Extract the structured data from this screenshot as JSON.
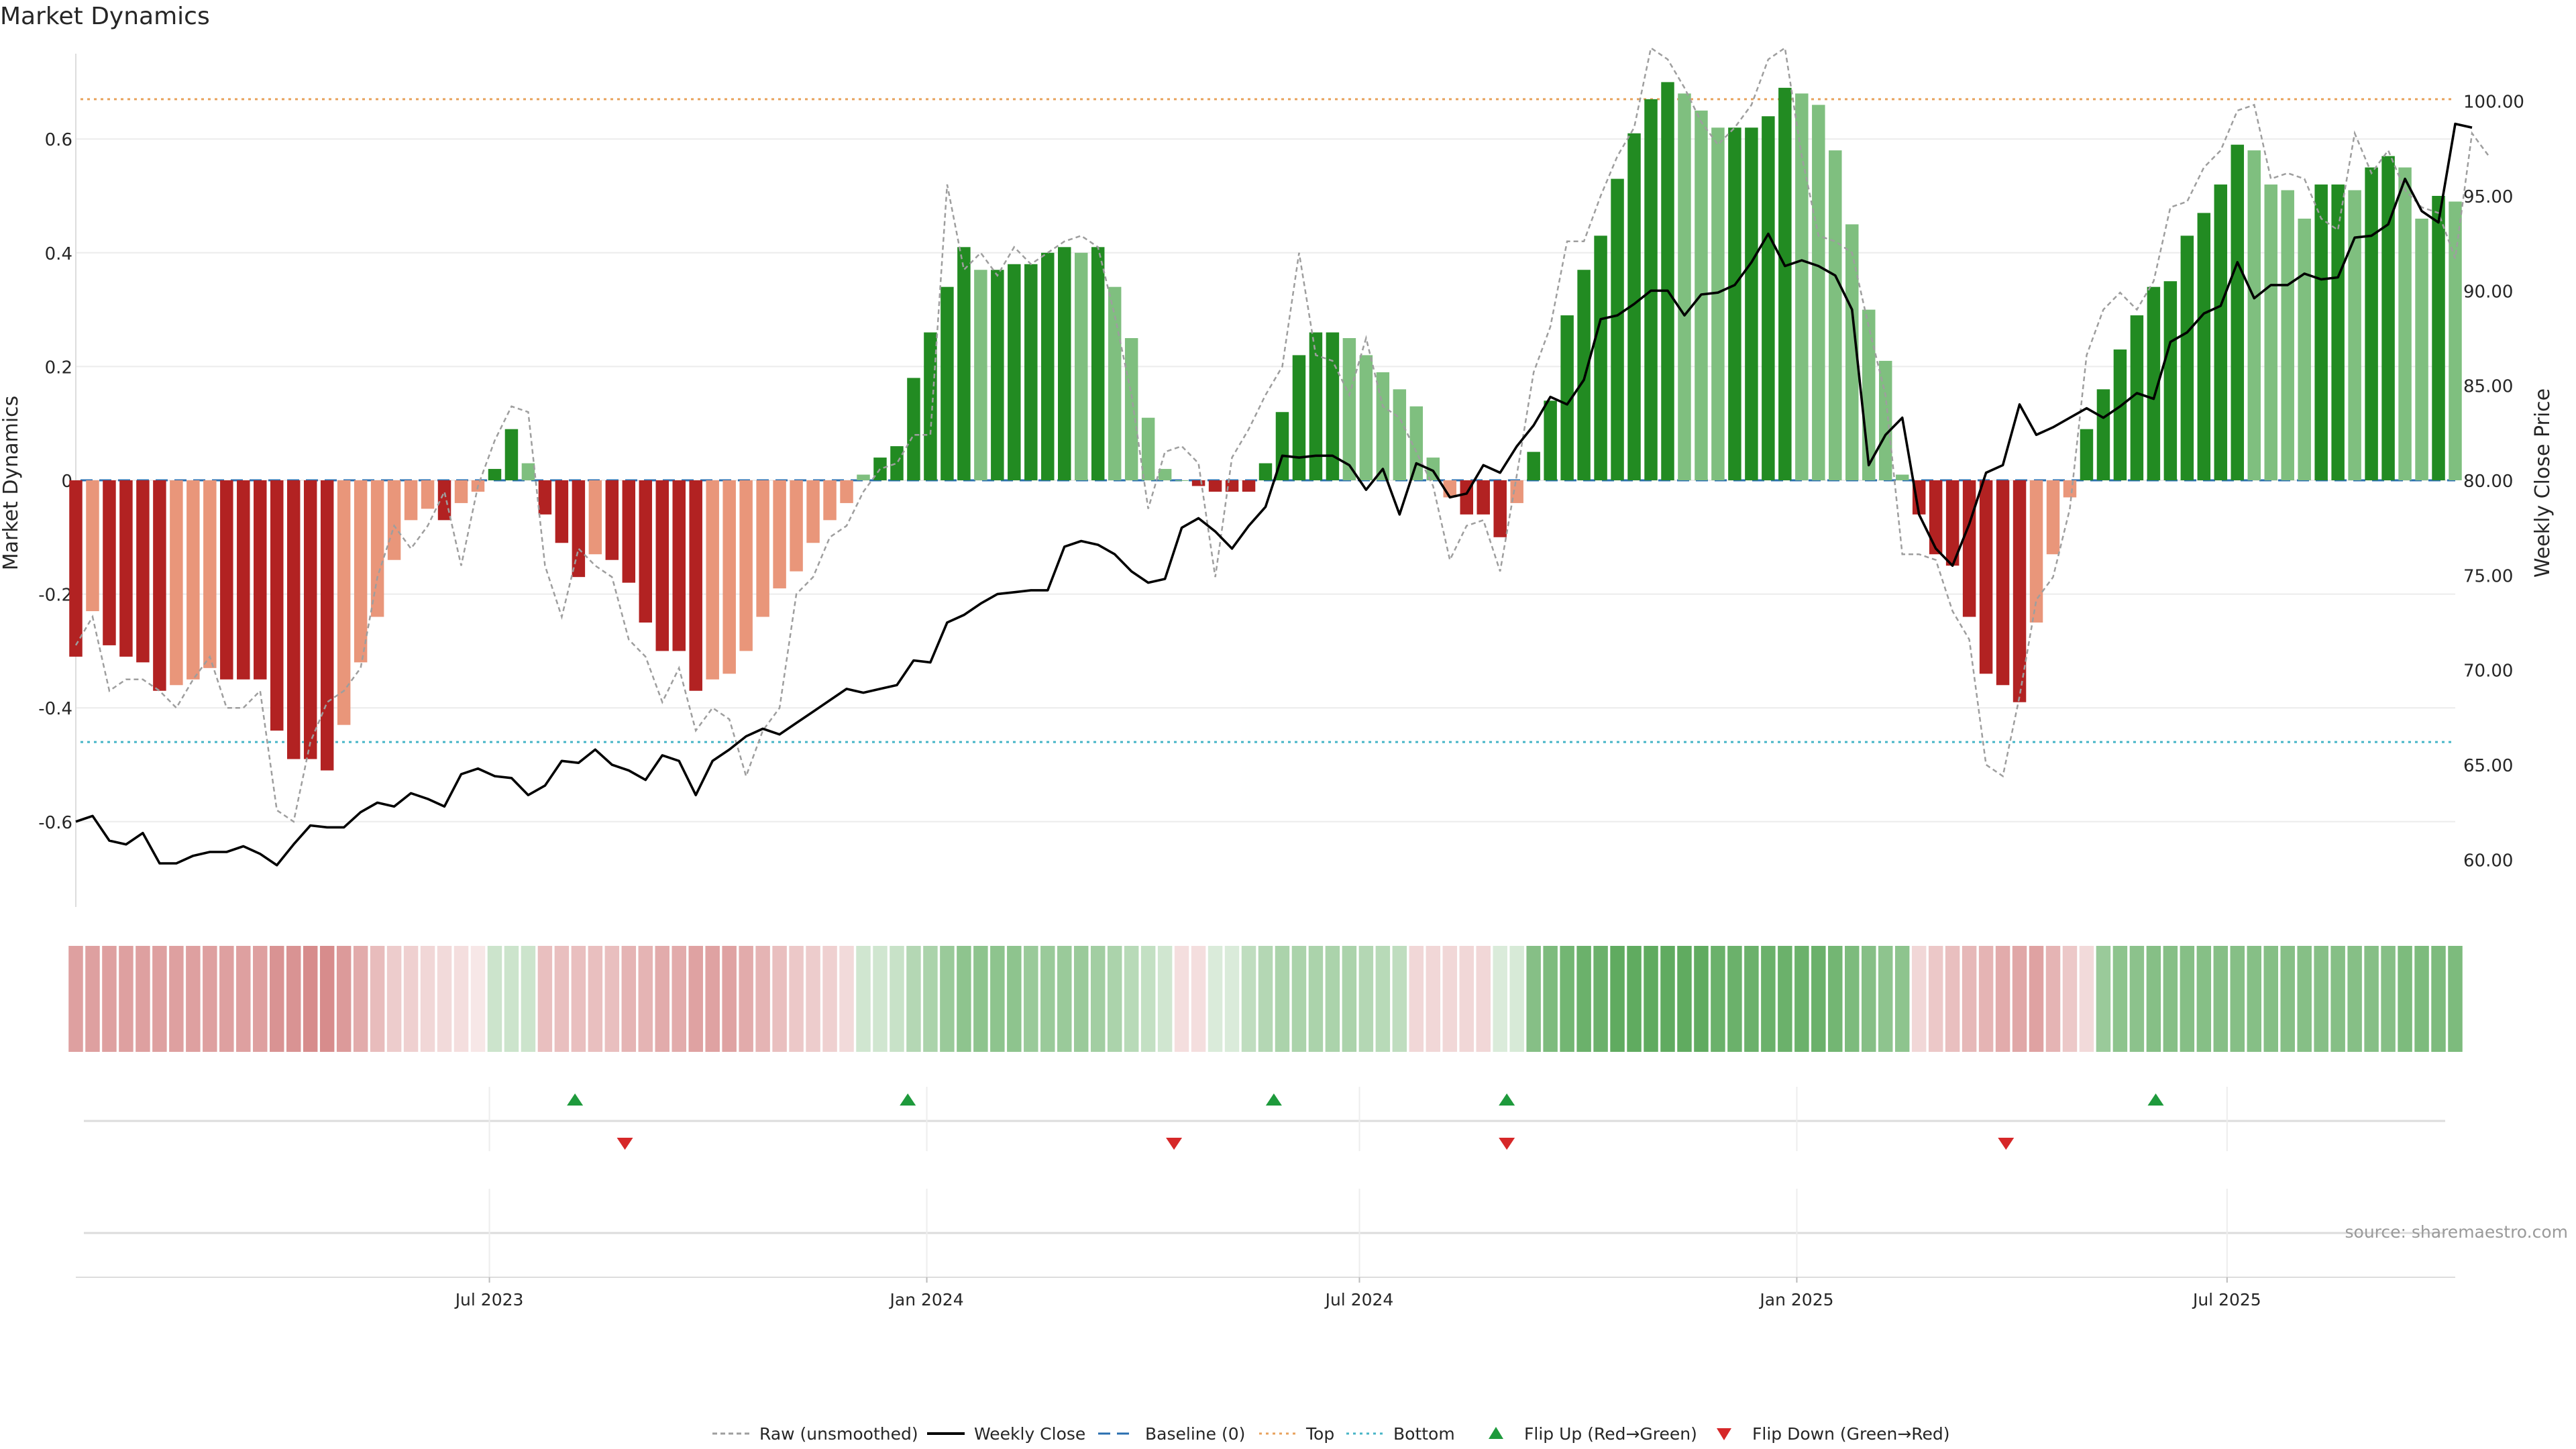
{
  "title": "Market Dynamics",
  "source": "source: sharemaestro.com",
  "chart_data": {
    "type": "bar",
    "left_axis": {
      "label": "Market Dynamics",
      "ylim": [
        -0.75,
        0.75
      ],
      "ticks": [
        -0.6,
        -0.4,
        -0.2,
        0,
        0.2,
        0.4,
        0.6
      ],
      "tick_labels": [
        "-0.6",
        "-0.4",
        "-0.2",
        "0",
        "0.2",
        "0.4",
        "0.6"
      ]
    },
    "right_axis": {
      "label": "Weekly Close Price",
      "ylim": [
        57.5,
        102.5
      ],
      "ticks": [
        60,
        65,
        70,
        75,
        80,
        85,
        90,
        95,
        100
      ],
      "tick_labels": [
        "60.00",
        "65.00",
        "70.00",
        "75.00",
        "80.00",
        "85.00",
        "90.00",
        "95.00",
        "100.00"
      ]
    },
    "x_axis": {
      "start": "2023-01-08",
      "end": "2025-10-05",
      "ticks": [
        "2023-07-01",
        "2024-01-01",
        "2024-07-01",
        "2025-01-01",
        "2025-07-01"
      ],
      "tick_labels": [
        "Jul 2023",
        "Jan 2024",
        "Jul 2024",
        "Jan 2025",
        "Jul 2025"
      ]
    },
    "top": 0.67,
    "bottom": -0.46,
    "bars": [
      -0.31,
      -0.23,
      -0.29,
      -0.31,
      -0.32,
      -0.37,
      -0.36,
      -0.35,
      -0.33,
      -0.35,
      -0.35,
      -0.35,
      -0.44,
      -0.49,
      -0.49,
      -0.51,
      -0.43,
      -0.32,
      -0.24,
      -0.14,
      -0.07,
      -0.05,
      -0.07,
      -0.04,
      -0.02,
      0.02,
      0.09,
      0.03,
      -0.06,
      -0.11,
      -0.17,
      -0.13,
      -0.14,
      -0.18,
      -0.25,
      -0.3,
      -0.3,
      -0.37,
      -0.35,
      -0.34,
      -0.3,
      -0.24,
      -0.19,
      -0.16,
      -0.11,
      -0.07,
      -0.04,
      0.01,
      0.04,
      0.06,
      0.18,
      0.26,
      0.34,
      0.41,
      0.37,
      0.37,
      0.38,
      0.38,
      0.4,
      0.41,
      0.4,
      0.41,
      0.34,
      0.25,
      0.11,
      0.02,
      0.0,
      -0.01,
      -0.02,
      -0.02,
      -0.02,
      0.03,
      0.12,
      0.22,
      0.26,
      0.26,
      0.25,
      0.22,
      0.19,
      0.16,
      0.13,
      0.04,
      -0.03,
      -0.06,
      -0.06,
      -0.1,
      -0.04,
      0.05,
      0.14,
      0.29,
      0.37,
      0.43,
      0.53,
      0.61,
      0.67,
      0.7,
      0.68,
      0.65,
      0.62,
      0.62,
      0.62,
      0.64,
      0.69,
      0.68,
      0.66,
      0.58,
      0.45,
      0.3,
      0.21,
      0.01,
      -0.06,
      -0.13,
      -0.15,
      -0.24,
      -0.34,
      -0.36,
      -0.39,
      -0.25,
      -0.13,
      -0.03,
      0.09,
      0.16,
      0.23,
      0.29,
      0.34,
      0.35,
      0.43,
      0.47,
      0.52,
      0.59,
      0.58,
      0.52,
      0.51,
      0.46,
      0.52,
      0.52,
      0.51,
      0.55,
      0.57,
      0.55,
      0.46,
      0.5,
      0.49
    ],
    "raw": [
      -0.29,
      -0.24,
      -0.37,
      -0.35,
      -0.35,
      -0.37,
      -0.4,
      -0.35,
      -0.31,
      -0.4,
      -0.4,
      -0.37,
      -0.58,
      -0.6,
      -0.46,
      -0.39,
      -0.37,
      -0.33,
      -0.17,
      -0.08,
      -0.12,
      -0.08,
      -0.02,
      -0.15,
      -0.01,
      0.07,
      0.13,
      0.12,
      -0.15,
      -0.24,
      -0.12,
      -0.15,
      -0.17,
      -0.28,
      -0.31,
      -0.39,
      -0.33,
      -0.44,
      -0.4,
      -0.42,
      -0.52,
      -0.44,
      -0.4,
      -0.2,
      -0.17,
      -0.1,
      -0.08,
      -0.02,
      0.02,
      0.03,
      0.08,
      0.08,
      0.52,
      0.37,
      0.4,
      0.36,
      0.41,
      0.38,
      0.4,
      0.42,
      0.43,
      0.41,
      0.29,
      0.15,
      -0.05,
      0.05,
      0.06,
      0.03,
      -0.17,
      0.04,
      0.09,
      0.15,
      0.2,
      0.4,
      0.22,
      0.21,
      0.15,
      0.25,
      0.13,
      0.11,
      0.05,
      -0.01,
      -0.14,
      -0.08,
      -0.07,
      -0.16,
      0.01,
      0.19,
      0.27,
      0.42,
      0.42,
      0.5,
      0.57,
      0.62,
      0.76,
      0.74,
      0.69,
      0.63,
      0.59,
      0.62,
      0.66,
      0.74,
      0.76,
      0.57,
      0.43,
      0.42,
      0.4,
      0.27,
      0.15,
      -0.13,
      -0.13,
      -0.14,
      -0.23,
      -0.28,
      -0.5,
      -0.52,
      -0.38,
      -0.21,
      -0.17,
      -0.05,
      0.22,
      0.3,
      0.33,
      0.3,
      0.35,
      0.48,
      0.49,
      0.55,
      0.58,
      0.65,
      0.66,
      0.53,
      0.54,
      0.53,
      0.46,
      0.44,
      0.61,
      0.54,
      0.58,
      0.51,
      0.48,
      0.47,
      0.39,
      0.61,
      0.57
    ],
    "close": [
      62.0,
      62.3,
      61.0,
      60.8,
      61.4,
      59.8,
      59.8,
      60.2,
      60.4,
      60.4,
      60.7,
      60.3,
      59.7,
      60.8,
      61.8,
      61.7,
      61.7,
      62.5,
      63.0,
      62.8,
      63.5,
      63.2,
      62.8,
      64.5,
      64.8,
      64.4,
      64.3,
      63.4,
      63.9,
      65.2,
      65.1,
      65.8,
      65.0,
      64.7,
      64.2,
      65.5,
      65.2,
      63.4,
      65.2,
      65.8,
      66.5,
      66.9,
      66.6,
      67.2,
      67.8,
      68.4,
      69.0,
      68.8,
      69.0,
      69.2,
      70.5,
      70.4,
      72.5,
      72.9,
      73.5,
      74.0,
      74.1,
      74.2,
      74.2,
      76.5,
      76.8,
      76.6,
      76.1,
      75.2,
      74.6,
      74.8,
      77.5,
      78.0,
      77.3,
      76.4,
      77.6,
      78.6,
      81.3,
      81.2,
      81.3,
      81.3,
      80.8,
      79.5,
      80.6,
      78.2,
      80.9,
      80.5,
      79.1,
      79.3,
      80.8,
      80.4,
      81.8,
      82.9,
      84.4,
      84.0,
      85.3,
      88.5,
      88.7,
      89.3,
      90.0,
      90.0,
      88.7,
      89.8,
      89.9,
      90.3,
      91.5,
      93.0,
      91.3,
      91.6,
      91.3,
      90.8,
      89.0,
      80.8,
      82.4,
      83.3,
      78.2,
      76.4,
      75.5,
      77.7,
      80.4,
      80.8,
      84.0,
      82.4,
      82.8,
      83.3,
      83.8,
      83.3,
      83.9,
      84.6,
      84.3,
      87.3,
      87.8,
      88.8,
      89.2,
      91.5,
      89.6,
      90.3,
      90.3,
      90.9,
      90.6,
      90.7,
      92.8,
      92.9,
      93.5,
      95.9,
      94.2,
      93.6,
      98.8,
      98.6
    ],
    "heat": [
      -0.41,
      -0.41,
      -0.41,
      -0.41,
      -0.41,
      -0.41,
      -0.41,
      -0.41,
      -0.41,
      -0.41,
      -0.41,
      -0.41,
      -0.48,
      -0.48,
      -0.52,
      -0.52,
      -0.45,
      -0.35,
      -0.26,
      -0.18,
      -0.15,
      -0.12,
      -0.1,
      -0.08,
      -0.04,
      0.18,
      0.18,
      0.18,
      -0.25,
      -0.25,
      -0.25,
      -0.25,
      -0.25,
      -0.3,
      -0.3,
      -0.35,
      -0.35,
      -0.4,
      -0.4,
      -0.4,
      -0.35,
      -0.3,
      -0.25,
      -0.2,
      -0.18,
      -0.15,
      -0.1,
      0.15,
      0.15,
      0.2,
      0.3,
      0.35,
      0.45,
      0.5,
      0.5,
      0.5,
      0.5,
      0.45,
      0.45,
      0.45,
      0.45,
      0.4,
      0.35,
      0.28,
      0.22,
      0.15,
      -0.08,
      -0.08,
      0.1,
      0.1,
      0.25,
      0.3,
      0.35,
      0.35,
      0.35,
      0.35,
      0.35,
      0.3,
      0.28,
      0.25,
      -0.12,
      -0.12,
      -0.12,
      -0.12,
      -0.12,
      0.1,
      0.12,
      0.55,
      0.6,
      0.65,
      0.7,
      0.7,
      0.75,
      0.75,
      0.75,
      0.75,
      0.75,
      0.75,
      0.7,
      0.7,
      0.7,
      0.7,
      0.7,
      0.7,
      0.7,
      0.65,
      0.6,
      0.55,
      0.5,
      0.5,
      -0.12,
      -0.2,
      -0.25,
      -0.28,
      -0.3,
      -0.35,
      -0.38,
      -0.4,
      -0.3,
      -0.2,
      -0.1,
      0.45,
      0.5,
      0.52,
      0.55,
      0.55,
      0.55,
      0.55,
      0.55,
      0.55,
      0.55,
      0.55,
      0.55,
      0.55,
      0.55,
      0.55,
      0.55,
      0.55,
      0.55,
      0.6,
      0.6,
      0.6,
      0.6
    ],
    "flips_up": [
      "2023-08-06",
      "2023-12-24",
      "2024-05-26",
      "2024-09-01",
      "2025-06-01"
    ],
    "flips_down": [
      "2023-08-27",
      "2024-04-14",
      "2024-09-01",
      "2025-03-30"
    ],
    "colors": {
      "neg_strong": "#b22222",
      "neg_weak": "#e9967a",
      "pos_strong": "#228b22",
      "pos_weak": "#7fbf7f",
      "close": "#000000",
      "raw": "#9e9e9e",
      "baseline": "#2a6fb0",
      "top": "#e8a25c",
      "bottom": "#47b5c7",
      "flip_up": "#1e9a3c",
      "flip_down": "#d62728"
    },
    "legend": [
      {
        "label": "Raw (unsmoothed)",
        "kind": "raw"
      },
      {
        "label": "Weekly Close",
        "kind": "close"
      },
      {
        "label": "Baseline (0)",
        "kind": "baseline"
      },
      {
        "label": "Top",
        "kind": "top"
      },
      {
        "label": "Bottom",
        "kind": "bottom"
      },
      {
        "label": "Flip Up (Red→Green)",
        "kind": "flip_up"
      },
      {
        "label": "Flip Down (Green→Red)",
        "kind": "flip_down"
      }
    ],
    "legend_position": "bottom-center",
    "grid": true
  }
}
